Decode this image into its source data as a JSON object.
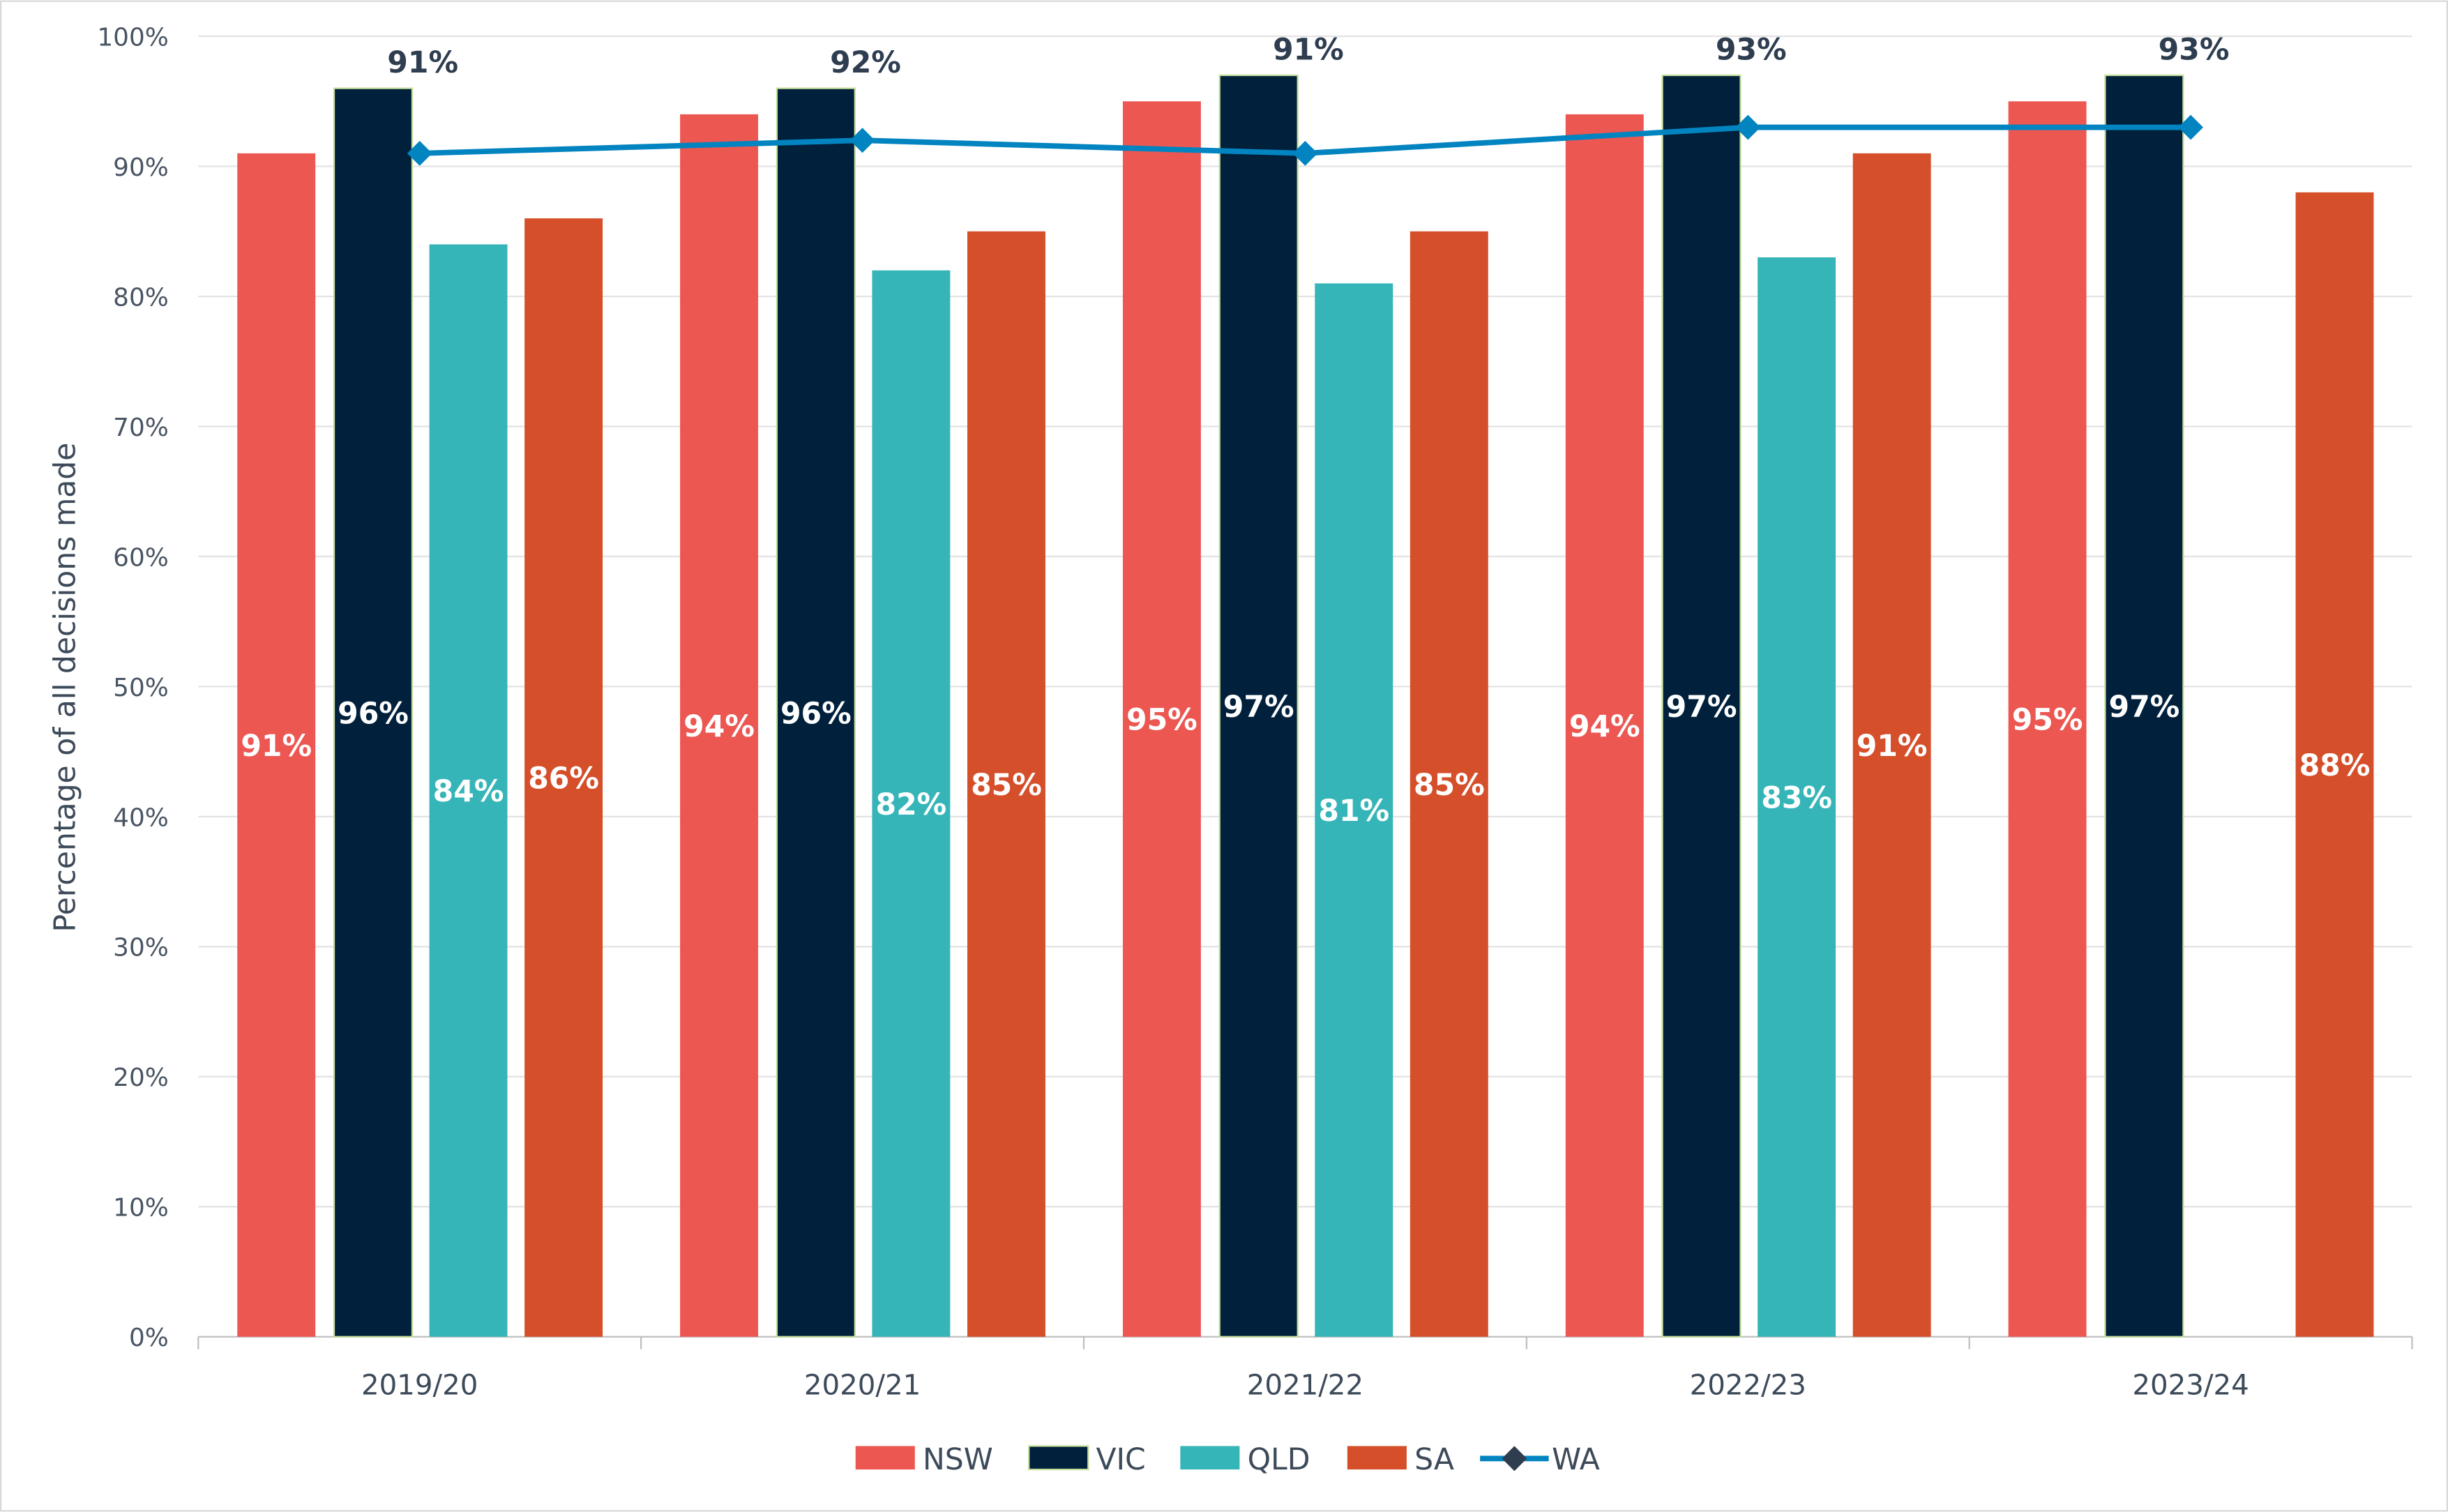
{
  "chart_data": {
    "type": "bar",
    "title": "",
    "xlabel": "",
    "ylabel": "Percentage of all decisions made",
    "ylim": [
      0,
      100
    ],
    "yticks": [
      "0%",
      "10%",
      "20%",
      "30%",
      "40%",
      "50%",
      "60%",
      "70%",
      "80%",
      "90%",
      "100%"
    ],
    "grid": true,
    "legend_position": "bottom",
    "categories": [
      "2019/20",
      "2020/21",
      "2021/22",
      "2022/23",
      "2023/24"
    ],
    "series": [
      {
        "name": "NSW",
        "type": "bar",
        "color": "#ec5752",
        "values": [
          91,
          94,
          95,
          94,
          95
        ]
      },
      {
        "name": "VIC",
        "type": "bar",
        "color": "#00203c",
        "outline": "#c5dd9a",
        "values": [
          96,
          96,
          97,
          97,
          97
        ]
      },
      {
        "name": "QLD",
        "type": "bar",
        "color": "#36b5b8",
        "values": [
          84,
          82,
          81,
          83,
          null
        ]
      },
      {
        "name": "SA",
        "type": "bar",
        "color": "#d44f2a",
        "values": [
          86,
          85,
          85,
          91,
          88
        ]
      },
      {
        "name": "WA",
        "type": "line",
        "color": "#0284c0",
        "marker": "diamond",
        "values": [
          91,
          92,
          91,
          93,
          93
        ]
      }
    ]
  }
}
